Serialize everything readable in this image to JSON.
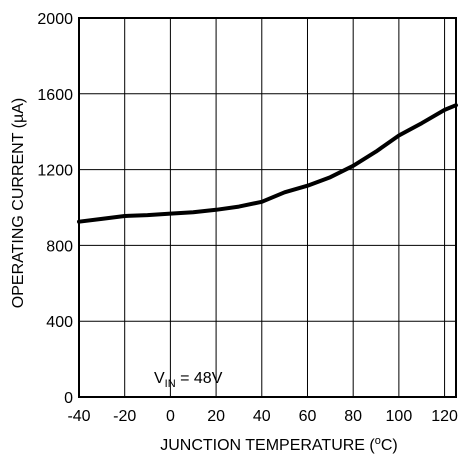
{
  "chart_data": {
    "type": "line",
    "title": "",
    "xlabel_main": "JUNCTION TEMPERATURE (",
    "xlabel_sup": "o",
    "xlabel_tail": "C)",
    "ylabel": "OPERATING CURRENT (µA)",
    "xlim": [
      -40,
      125
    ],
    "ylim": [
      0,
      2000
    ],
    "xticks": [
      -40,
      -20,
      0,
      20,
      40,
      60,
      80,
      100,
      120
    ],
    "yticks": [
      0,
      400,
      800,
      1200,
      1600,
      2000
    ],
    "grid": true,
    "annotation": {
      "prefix": "V",
      "subscript": "IN",
      "suffix": " = 48V"
    },
    "series": [
      {
        "x": [
          -40,
          -30,
          -20,
          -10,
          0,
          10,
          20,
          30,
          40,
          50,
          60,
          70,
          80,
          90,
          100,
          110,
          120,
          125
        ],
        "y": [
          925,
          940,
          955,
          960,
          968,
          975,
          988,
          1005,
          1030,
          1080,
          1115,
          1160,
          1220,
          1295,
          1380,
          1445,
          1515,
          1540
        ]
      }
    ],
    "colors": {
      "line": "#000000",
      "grid": "#000000",
      "background": "#ffffff"
    }
  }
}
